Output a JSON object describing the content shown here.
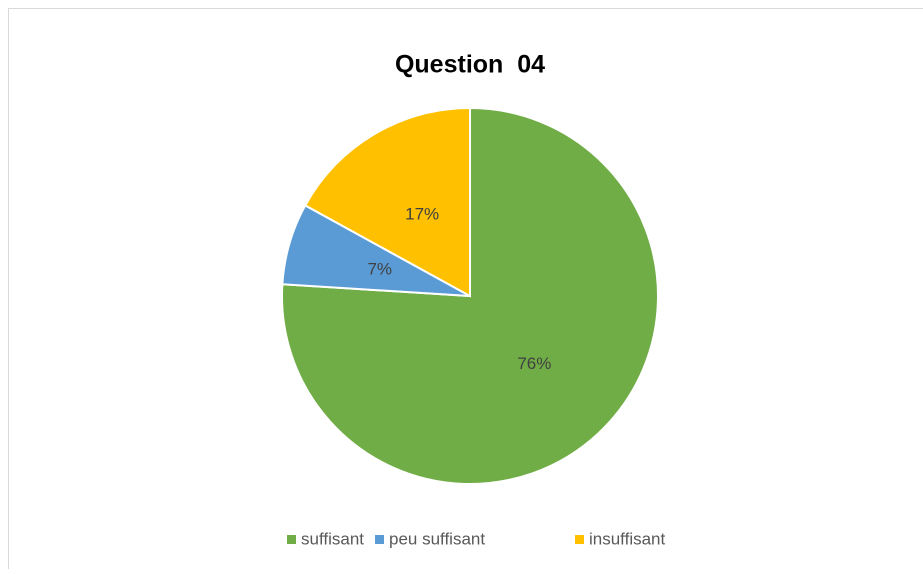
{
  "chart_data": {
    "type": "pie",
    "title": "Question  04",
    "categories": [
      "suffisant",
      "peu suffisant",
      "insuffisant"
    ],
    "values": [
      76,
      7,
      17
    ],
    "value_labels": [
      "76%",
      "7%",
      "17%"
    ],
    "colors": [
      "#70ad47",
      "#5b9bd5",
      "#ffc000"
    ],
    "legend": "bottom"
  }
}
